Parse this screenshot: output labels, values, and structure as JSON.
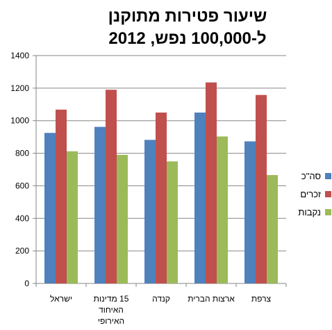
{
  "chart_data": {
    "type": "bar",
    "title": "שיעור פטירות מתוקנן ל-100,000 נפש, 2012",
    "categories": [
      "ישראל",
      "15 מדינות האיחוד האירופי",
      "קנדה",
      "ארצות הברית",
      "צרפת"
    ],
    "series": [
      {
        "name": "סה\"כ",
        "color": "#4F81BD",
        "values": [
          925,
          962,
          882,
          1050,
          873
        ]
      },
      {
        "name": "זכרים",
        "color": "#C0504D",
        "values": [
          1068,
          1190,
          1050,
          1235,
          1158
        ]
      },
      {
        "name": "נקבות",
        "color": "#9BBB59",
        "values": [
          812,
          790,
          750,
          903,
          666
        ]
      }
    ],
    "ylim": [
      0,
      1400
    ],
    "yticks": [
      0,
      200,
      400,
      600,
      800,
      1000,
      1200,
      1400
    ],
    "grid": true,
    "legend_position": "right",
    "xlabel": "",
    "ylabel": ""
  }
}
